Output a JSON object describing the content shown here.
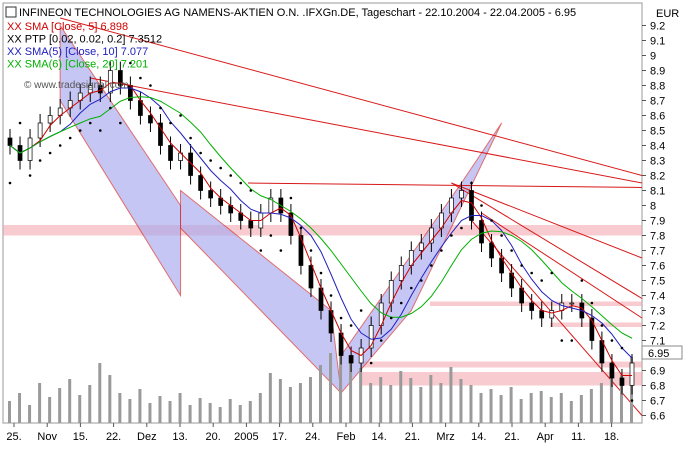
{
  "chart_data": {
    "type": "line",
    "title": "INFINEON TECHNOLOGIES AG NAMENS-AKTIEN O.N. .IFXGn.DE, Tageschart - 22.10.2004 - 22.04.2005 - 6.95",
    "currency": "EUR",
    "last_price_label": "6.95",
    "watermark": "© www.tradesignal.com",
    "legend": [
      {
        "label": "XX SMA [Close, 5] 6.898",
        "color": "#d00000"
      },
      {
        "label": "XX PTP [0.02, 0.02, 0.2] 7.3512",
        "color": "#000000"
      },
      {
        "label": "XX SMA(5) [Close, 10] 7.077",
        "color": "#2020c0"
      },
      {
        "label": "XX SMA(6) [Close, 20] 7.201",
        "color": "#00b000"
      }
    ],
    "ylim": [
      6.55,
      9.35
    ],
    "y_ticks": [
      "9.2",
      "9.1",
      "9",
      "8.9",
      "8.8",
      "8.7",
      "8.6",
      "8.5",
      "8.4",
      "8.3",
      "8.2",
      "8.1",
      "8",
      "7.9",
      "7.8",
      "7.7",
      "7.6",
      "7.5",
      "7.4",
      "7.3",
      "7.2",
      "7.1",
      "7",
      "6.9",
      "6.8",
      "6.7",
      "6.6"
    ],
    "x_ticks": [
      "25.",
      "Nov",
      "15.",
      "22.",
      "Dez",
      "13.",
      "20.",
      "2005",
      "17.",
      "24.",
      "Feb",
      "14.",
      "21.",
      "Mrz",
      "14.",
      "21.",
      "Apr",
      "11.",
      "18."
    ],
    "price_close_estimate": [
      8.4,
      8.3,
      8.45,
      8.55,
      8.6,
      8.65,
      8.7,
      8.75,
      8.8,
      8.75,
      8.9,
      8.8,
      8.7,
      8.6,
      8.55,
      8.4,
      8.3,
      8.35,
      8.2,
      8.1,
      8.05,
      8.0,
      7.95,
      7.9,
      7.85,
      7.95,
      8.05,
      7.95,
      7.8,
      7.6,
      7.45,
      7.3,
      7.15,
      7.0,
      6.95,
      7.05,
      7.2,
      7.35,
      7.5,
      7.6,
      7.7,
      7.75,
      7.85,
      7.95,
      8.05,
      8.1,
      7.9,
      7.75,
      7.65,
      7.55,
      7.45,
      7.35,
      7.3,
      7.25,
      7.3,
      7.35,
      7.35,
      7.25,
      7.1,
      6.95,
      6.85,
      6.8,
      6.95
    ]
  }
}
